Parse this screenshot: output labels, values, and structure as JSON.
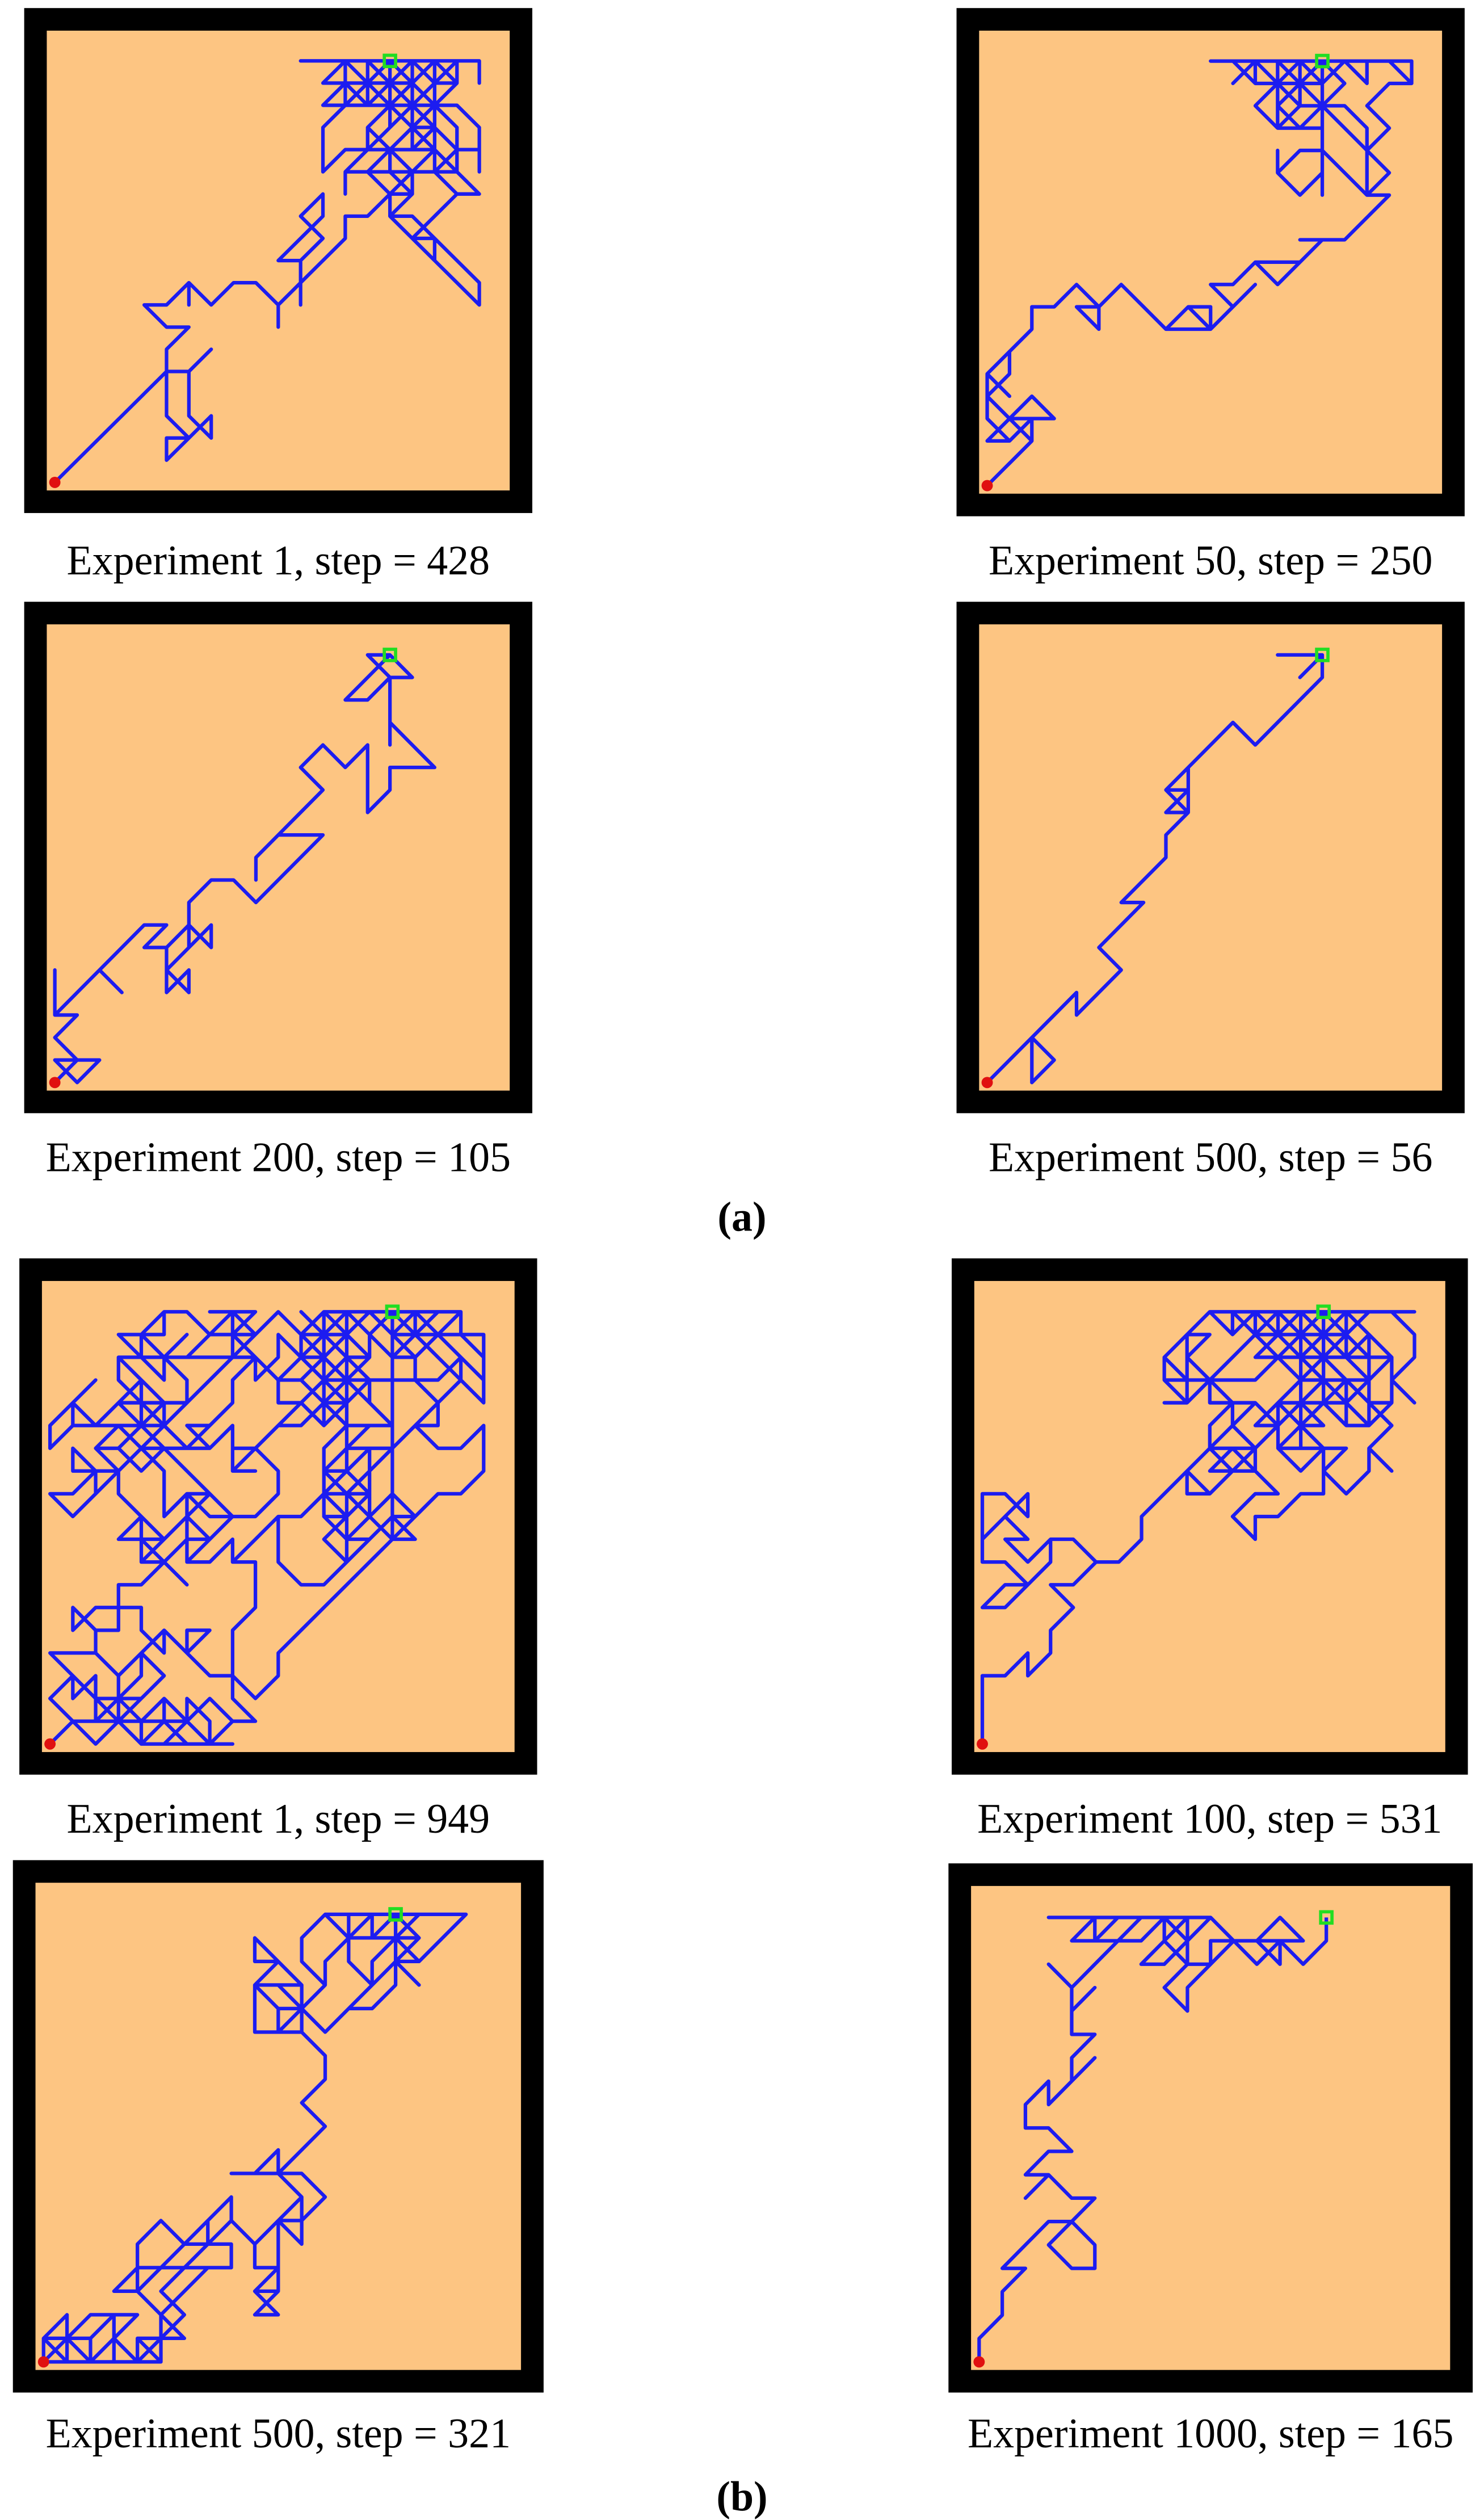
{
  "figure": {
    "parts": [
      {
        "label": "(a)",
        "panels": [
          {
            "caption": "Experiment 1, step = 428"
          },
          {
            "caption": "Experiment 50, step = 250"
          },
          {
            "caption": "Experiment 200, step = 105"
          },
          {
            "caption": "Experiment 500, step = 56"
          }
        ]
      },
      {
        "label": "(b)",
        "panels": [
          {
            "caption": "Experiment 1, step = 949"
          },
          {
            "caption": "Experiment 100, step = 531"
          },
          {
            "caption": "Experiment 500, step = 321"
          },
          {
            "caption": "Experiment 1000, step = 165"
          }
        ]
      }
    ]
  }
}
